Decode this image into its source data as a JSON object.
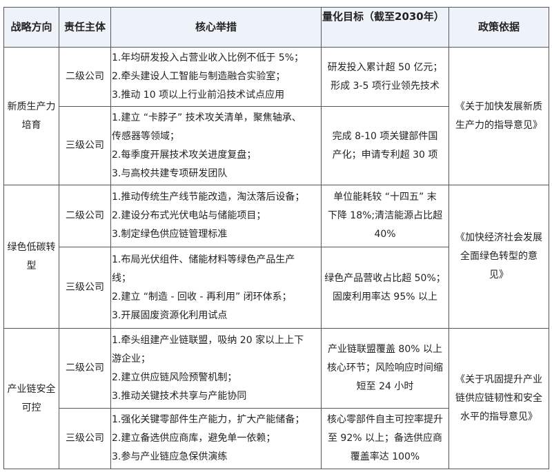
{
  "headers": [
    "战略方向",
    "责任主体",
    "核心举措",
    "量化目标（截至2030年）",
    "政策依据"
  ],
  "groups": [
    {
      "direction": [
        "新质生产力",
        "培育"
      ],
      "policy": [
        "《关于加快发展新质",
        "生产力的指导意见》"
      ],
      "rows": [
        {
          "org": "二级公司",
          "measures": [
            "1.年均研发投入占营业收入比例不低于 5%；",
            "2.牵头建设人工智能与制造融合实验室；",
            "3.推动 10 项以上行业前沿技术试点应用"
          ],
          "targets": [
            "研发投入累计超 50 亿元；",
            "形成 3-5 项行业领先技术"
          ]
        },
        {
          "org": "三级公司",
          "measures": [
            "1.建立 “卡脖子” 技术攻关清单，聚焦轴承、",
            "传感器等领域；",
            "2.每季度开展技术攻关进度复盘；",
            "3.与高校共建专项研发团队"
          ],
          "targets": [
            "完成 8-10 项关键部件国",
            "产化；申请专利超 30 项"
          ]
        }
      ]
    },
    {
      "direction": [
        "绿色低碳转",
        "型"
      ],
      "policy": [
        "《加快经济社会发展",
        "全面绿色转型的意",
        "见》"
      ],
      "rows": [
        {
          "org": "二级公司",
          "measures": [
            "1.推动传统生产线节能改造，淘汰落后设备；",
            "2.建设分布式光伏电站与储能项目；",
            "3.制定绿色供应链管理标准"
          ],
          "targets": [
            "单位能耗较 “十四五” 末",
            "下降 18%;清洁能源占比超",
            "40%"
          ]
        },
        {
          "org": "三级公司",
          "measures": [
            "1.布局光伏组件、储能材料等绿色产品生产",
            "线；",
            "2.建立 “制造 - 回收 - 再利用” 闭环体系；",
            "3.开展固废资源化利用试点"
          ],
          "targets": [
            "绿色产品营收占比超 50%；",
            "固废利用率达 95% 以上"
          ]
        }
      ]
    },
    {
      "direction": [
        "产业链安全",
        "可控"
      ],
      "policy": [
        "《关于巩固提升产业",
        "链供应链韧性和安全",
        "水平的指导意见》"
      ],
      "rows": [
        {
          "org": "二级公司",
          "measures": [
            "1.牵头组建产业链联盟，吸纳 20 家以上上下",
            "游企业；",
            "2.建立供应链风险预警机制；",
            "3.推动关键技术共享与产能协同"
          ],
          "targets": [
            "产业链联盟覆盖 80% 以上",
            "核心环节；风险响应时间缩",
            "短至 24 小时"
          ]
        },
        {
          "org": "三级公司",
          "measures": [
            "1.强化关键零部件生产能力，扩大产能储备；",
            "2.建立备选供应商库，避免单一依赖；",
            "3.参与产业链应急保供演练"
          ],
          "targets": [
            "核心零部件自主可控率提升",
            "至 92% 以上；备选供应商",
            "覆盖率达 100%"
          ]
        }
      ]
    }
  ]
}
